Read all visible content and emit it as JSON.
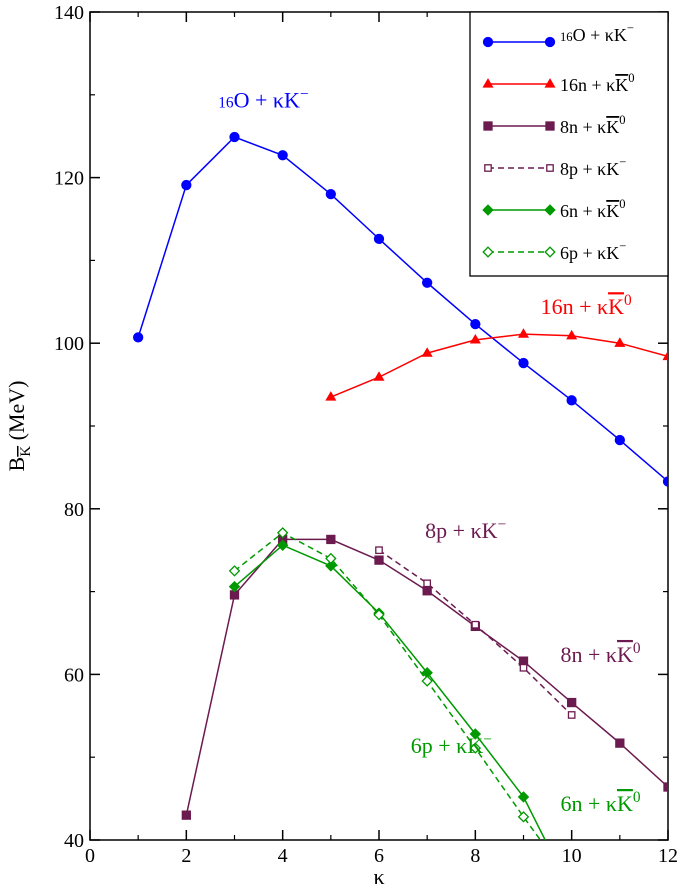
{
  "chart_data": {
    "type": "line",
    "title": "",
    "xlabel": "κ",
    "ylabel_main": "B",
    "ylabel_sub": "K",
    "ylabel_unit": "(MeV)",
    "xlim": [
      0,
      12
    ],
    "ylim": [
      40,
      140
    ],
    "xticks": [
      0,
      2,
      4,
      6,
      8,
      10,
      12
    ],
    "yticks": [
      40,
      60,
      80,
      100,
      120,
      140
    ],
    "grid": false,
    "legend_position": "top-right",
    "series": [
      {
        "key": "o16",
        "legend_prefix": "16",
        "legend_label": "O + κK",
        "legend_sup": "−",
        "overbar": false,
        "color": "#0000ff",
        "marker": "circle",
        "filled": true,
        "dashed": false,
        "x": [
          1,
          2,
          3,
          4,
          5,
          6,
          7,
          8,
          9,
          10,
          11,
          12
        ],
        "values": [
          100.7,
          119.1,
          124.9,
          122.7,
          118.0,
          112.6,
          107.3,
          102.3,
          97.6,
          93.1,
          88.3,
          83.3
        ]
      },
      {
        "key": "n16",
        "legend_prefix": "",
        "legend_label": "16n + κK",
        "legend_sup": "0",
        "overbar": true,
        "color": "#ff0000",
        "marker": "triangle",
        "filled": true,
        "dashed": false,
        "x": [
          5,
          6,
          7,
          8,
          9,
          10,
          11,
          12
        ],
        "values": [
          93.5,
          95.9,
          98.8,
          100.4,
          101.1,
          100.9,
          100.0,
          98.4
        ]
      },
      {
        "key": "n8",
        "legend_prefix": "",
        "legend_label": "8n + κK",
        "legend_sup": "0",
        "overbar": true,
        "color": "#6b1b4f",
        "marker": "square",
        "filled": true,
        "dashed": false,
        "x": [
          2,
          3,
          4,
          5,
          6,
          7,
          8,
          9,
          10,
          11,
          12
        ],
        "values": [
          43.0,
          69.6,
          76.3,
          76.3,
          73.8,
          70.1,
          65.8,
          61.6,
          56.6,
          51.7,
          46.4
        ]
      },
      {
        "key": "p8",
        "legend_prefix": "",
        "legend_label": "8p + κK",
        "legend_sup": "−",
        "overbar": false,
        "color": "#6b1b4f",
        "marker": "square",
        "filled": false,
        "dashed": true,
        "x": [
          6,
          7,
          8,
          9,
          10
        ],
        "values": [
          75.0,
          71.0,
          66.0,
          60.8,
          55.1
        ]
      },
      {
        "key": "n6",
        "legend_prefix": "",
        "legend_label": "6n + κK",
        "legend_sup": "0",
        "overbar": true,
        "color": "#009900",
        "marker": "diamond",
        "filled": true,
        "dashed": false,
        "x": [
          3,
          4,
          5,
          6,
          7,
          8,
          9,
          9.45
        ],
        "values": [
          70.6,
          75.6,
          73.1,
          67.4,
          60.2,
          52.8,
          45.2,
          40.0
        ]
      },
      {
        "key": "p6",
        "legend_prefix": "",
        "legend_label": "6p + κK",
        "legend_sup": "−",
        "overbar": false,
        "color": "#009900",
        "marker": "diamond",
        "filled": false,
        "dashed": true,
        "x": [
          3,
          4,
          5,
          6,
          7,
          8,
          9,
          9.35
        ],
        "values": [
          72.5,
          77.1,
          74.0,
          67.2,
          59.2,
          51.1,
          42.8,
          40.0
        ]
      }
    ],
    "annotations": [
      {
        "key": "o16",
        "prefix": "16",
        "text": "O + κK",
        "sup": "−",
        "overbar": false,
        "color": "#0000ff",
        "x": 3.6,
        "y": 127.5
      },
      {
        "key": "n16",
        "prefix": "",
        "text": "16n + κK",
        "sup": "0",
        "overbar": true,
        "color": "#ff0000",
        "x": 10.3,
        "y": 103.5
      },
      {
        "key": "p8",
        "prefix": "",
        "text": "8p + κK",
        "sup": "−",
        "overbar": false,
        "color": "#6b1b4f",
        "x": 7.8,
        "y": 76.5
      },
      {
        "key": "n8",
        "prefix": "",
        "text": "8n + κK",
        "sup": "0",
        "overbar": true,
        "color": "#6b1b4f",
        "x": 10.6,
        "y": 61.5
      },
      {
        "key": "p6",
        "prefix": "",
        "text": "6p + κK",
        "sup": "−",
        "overbar": false,
        "color": "#009900",
        "x": 7.5,
        "y": 50.5
      },
      {
        "key": "n6",
        "prefix": "",
        "text": "6n + κK",
        "sup": "0",
        "overbar": true,
        "color": "#009900",
        "x": 10.6,
        "y": 43.5
      }
    ]
  }
}
